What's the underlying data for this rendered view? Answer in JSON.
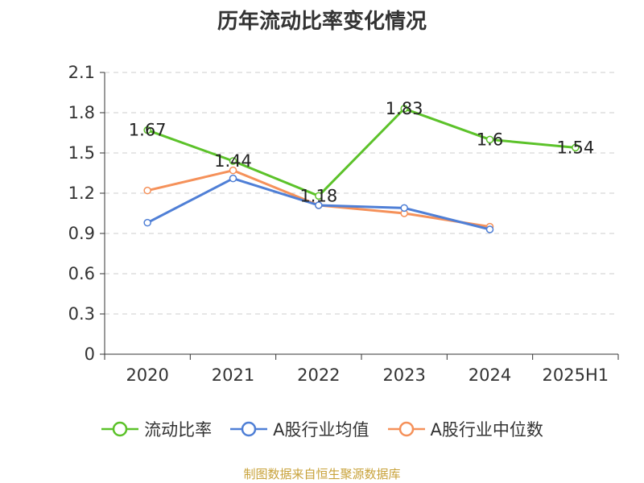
{
  "chart_data": {
    "type": "line",
    "title": "历年流动比率变化情况",
    "categories": [
      "2020",
      "2021",
      "2022",
      "2023",
      "2024",
      "2025H1"
    ],
    "ylim": [
      0,
      2.1
    ],
    "yticks": [
      "0",
      "0.3",
      "0.6",
      "0.9",
      "1.2",
      "1.5",
      "1.8",
      "2.1"
    ],
    "grid": true,
    "legend_position": "bottom",
    "series": [
      {
        "name": "流动比率",
        "color": "#5cc22a",
        "values": [
          1.67,
          1.44,
          1.18,
          1.83,
          1.6,
          1.54
        ],
        "labels": [
          "1.67",
          "1.44",
          "1.18",
          "1.83",
          "1.6",
          "1.54"
        ]
      },
      {
        "name": "A股行业均值",
        "color": "#4f7fd6",
        "values": [
          0.98,
          1.31,
          1.11,
          1.09,
          0.93,
          null
        ]
      },
      {
        "name": "A股行业中位数",
        "color": "#f5915a",
        "values": [
          1.22,
          1.37,
          1.11,
          1.05,
          0.95,
          null
        ]
      }
    ]
  },
  "footer": {
    "source": "制图数据来自恒生聚源数据库"
  }
}
